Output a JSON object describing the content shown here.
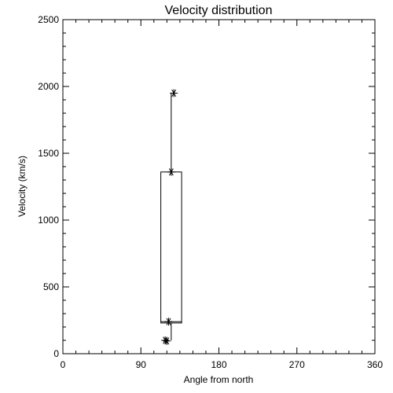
{
  "chart_data": {
    "type": "box",
    "title": "Velocity distribution",
    "xlabel": "Angle from north",
    "ylabel": "Velocity (km/s)",
    "xlim": [
      0,
      360
    ],
    "ylim": [
      0,
      2500
    ],
    "x_ticks": [
      0,
      90,
      180,
      270,
      360
    ],
    "y_ticks": [
      0,
      500,
      1000,
      1500,
      2000,
      2500
    ],
    "x_tick_labels": [
      "0",
      "90",
      "180",
      "270",
      "360"
    ],
    "y_tick_labels": [
      "0",
      "500",
      "1000",
      "1500",
      "2000",
      "2500"
    ],
    "box": {
      "x_left": 113,
      "x_right": 137,
      "q1": 230,
      "median": 240,
      "q3": 1360,
      "whisker_low": 100,
      "whisker_high": 1950,
      "whisker_x": 125
    },
    "points": [
      {
        "x": 128,
        "y": 1950
      },
      {
        "x": 125,
        "y": 1360
      },
      {
        "x": 122,
        "y": 240
      },
      {
        "x": 118,
        "y": 100
      },
      {
        "x": 120,
        "y": 95
      }
    ]
  }
}
